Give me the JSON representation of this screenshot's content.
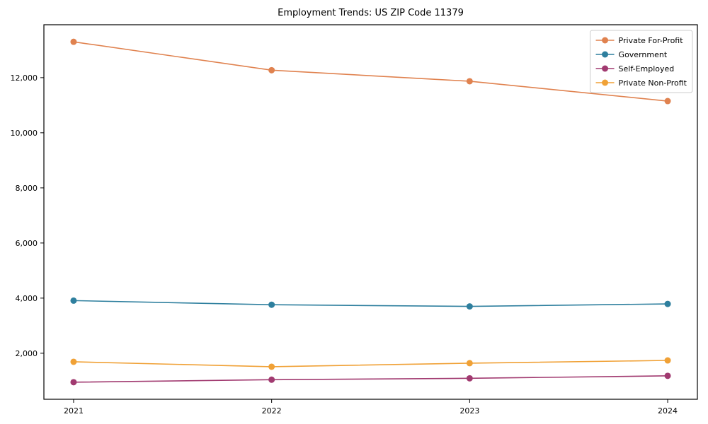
{
  "chart_data": {
    "type": "line",
    "title": "Employment Trends: US ZIP Code 11379",
    "xlabel": "",
    "ylabel": "",
    "x": [
      2021,
      2022,
      2023,
      2024
    ],
    "xtick_labels": [
      "2021",
      "2022",
      "2023",
      "2024"
    ],
    "series": [
      {
        "name": "Private For-Profit",
        "color": "#e0824f",
        "values": [
          13300,
          12270,
          11870,
          11150
        ]
      },
      {
        "name": "Government",
        "color": "#2e7f9e",
        "values": [
          3910,
          3760,
          3700,
          3790
        ]
      },
      {
        "name": "Self-Employed",
        "color": "#a13a70",
        "values": [
          950,
          1040,
          1090,
          1180
        ]
      },
      {
        "name": "Private Non-Profit",
        "color": "#f0a136",
        "values": [
          1690,
          1510,
          1640,
          1740
        ]
      }
    ],
    "xlim": [
      2020.85,
      2024.15
    ],
    "ylim": [
      330,
      13920
    ],
    "yticks": [
      2000,
      4000,
      6000,
      8000,
      10000,
      12000
    ],
    "ytick_labels": [
      "2,000",
      "4,000",
      "6,000",
      "8,000",
      "10,000",
      "12,000"
    ],
    "grid": false,
    "legend_position": "upper right",
    "marker": "o",
    "frame_color": "#000000",
    "legend_border_color": "#cccccc"
  }
}
